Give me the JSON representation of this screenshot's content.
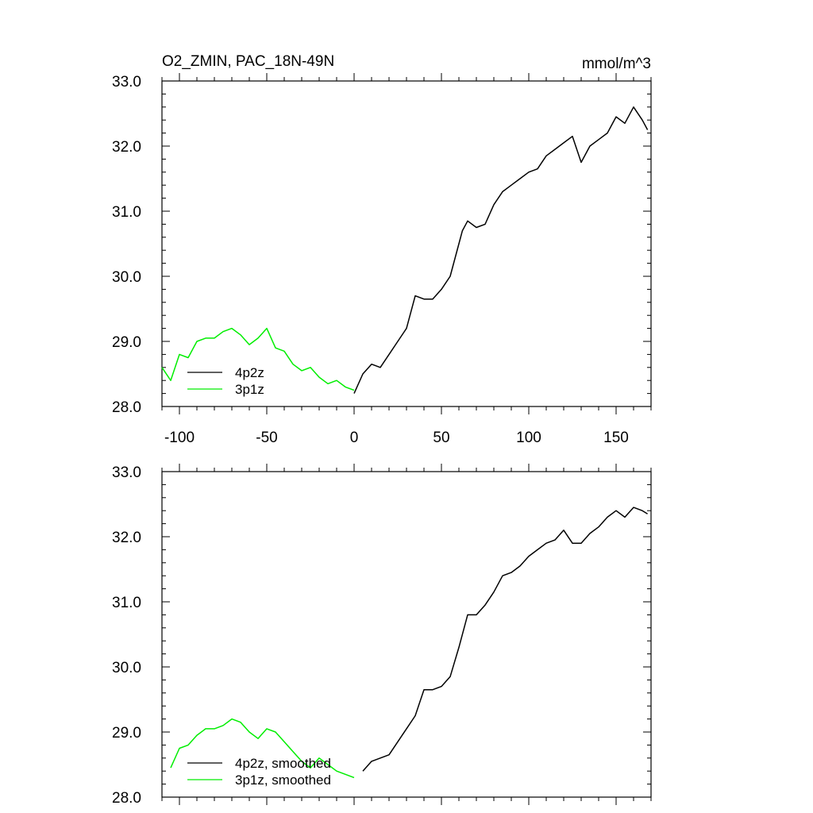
{
  "chart_data": [
    {
      "type": "line",
      "title": "O2_ZMIN, PAC_18N-49N",
      "units": "mmol/m^3",
      "xlim": [
        -110,
        170
      ],
      "ylim": [
        28,
        33
      ],
      "x_ticks": [
        -100,
        -50,
        0,
        50,
        100,
        150
      ],
      "x_tick_labels": [
        "-100",
        "-50",
        "0",
        "50",
        "100",
        "150"
      ],
      "y_ticks": [
        28,
        29,
        30,
        31,
        32,
        33
      ],
      "y_tick_labels": [
        "28.0",
        "29.0",
        "30.0",
        "31.0",
        "32.0",
        "33.0"
      ],
      "legend_position": "bottom-left",
      "series": [
        {
          "name": "4p2z",
          "color": "#000000",
          "x": [
            0,
            5,
            10,
            15,
            20,
            25,
            30,
            35,
            40,
            45,
            50,
            55,
            60,
            62,
            65,
            70,
            75,
            80,
            85,
            90,
            95,
            100,
            105,
            110,
            115,
            120,
            125,
            130,
            135,
            140,
            145,
            150,
            155,
            160,
            165,
            168
          ],
          "y": [
            28.2,
            28.5,
            28.65,
            28.6,
            28.8,
            29.0,
            29.2,
            29.7,
            29.65,
            29.65,
            29.8,
            30.0,
            30.5,
            30.7,
            30.85,
            30.75,
            30.8,
            31.1,
            31.3,
            31.4,
            31.5,
            31.6,
            31.65,
            31.85,
            31.95,
            32.05,
            32.15,
            31.75,
            32.0,
            32.1,
            32.2,
            32.45,
            32.35,
            32.6,
            32.4,
            32.25
          ]
        },
        {
          "name": "3p1z",
          "color": "#00ee00",
          "x": [
            -110,
            -105,
            -100,
            -95,
            -90,
            -85,
            -80,
            -75,
            -70,
            -65,
            -60,
            -55,
            -50,
            -45,
            -40,
            -35,
            -30,
            -25,
            -20,
            -15,
            -10,
            -5,
            0
          ],
          "y": [
            28.6,
            28.4,
            28.8,
            28.75,
            29.0,
            29.05,
            29.05,
            29.15,
            29.2,
            29.1,
            28.95,
            29.05,
            29.2,
            28.9,
            28.85,
            28.65,
            28.55,
            28.6,
            28.45,
            28.35,
            28.4,
            28.3,
            28.25
          ]
        }
      ]
    },
    {
      "type": "line",
      "title": "",
      "xlim": [
        -110,
        170
      ],
      "ylim": [
        28,
        33
      ],
      "y_ticks": [
        28,
        29,
        30,
        31,
        32,
        33
      ],
      "y_tick_labels": [
        "28.0",
        "29.0",
        "30.0",
        "31.0",
        "32.0",
        "33.0"
      ],
      "legend_position": "bottom-left",
      "series": [
        {
          "name": "4p2z, smoothed",
          "color": "#000000",
          "x": [
            5,
            10,
            15,
            20,
            25,
            30,
            35,
            40,
            45,
            50,
            55,
            60,
            65,
            70,
            75,
            80,
            85,
            90,
            95,
            100,
            105,
            110,
            115,
            120,
            125,
            130,
            135,
            140,
            145,
            150,
            155,
            160,
            165,
            168
          ],
          "y": [
            28.4,
            28.55,
            28.6,
            28.65,
            28.85,
            29.05,
            29.25,
            29.65,
            29.65,
            29.7,
            29.85,
            30.3,
            30.8,
            30.8,
            30.95,
            31.15,
            31.4,
            31.45,
            31.55,
            31.7,
            31.8,
            31.9,
            31.95,
            32.1,
            31.9,
            31.9,
            32.05,
            32.15,
            32.3,
            32.4,
            32.3,
            32.45,
            32.4,
            32.35
          ]
        },
        {
          "name": "3p1z, smoothed",
          "color": "#00ee00",
          "x": [
            -105,
            -100,
            -95,
            -90,
            -85,
            -80,
            -75,
            -70,
            -65,
            -60,
            -55,
            -50,
            -45,
            -40,
            -35,
            -30,
            -25,
            -20,
            -15,
            -10,
            -5,
            0
          ],
          "y": [
            28.45,
            28.75,
            28.8,
            28.95,
            29.05,
            29.05,
            29.1,
            29.2,
            29.15,
            29.0,
            28.9,
            29.05,
            29.0,
            28.85,
            28.7,
            28.55,
            28.45,
            28.6,
            28.5,
            28.4,
            28.35,
            28.3
          ]
        }
      ]
    }
  ]
}
